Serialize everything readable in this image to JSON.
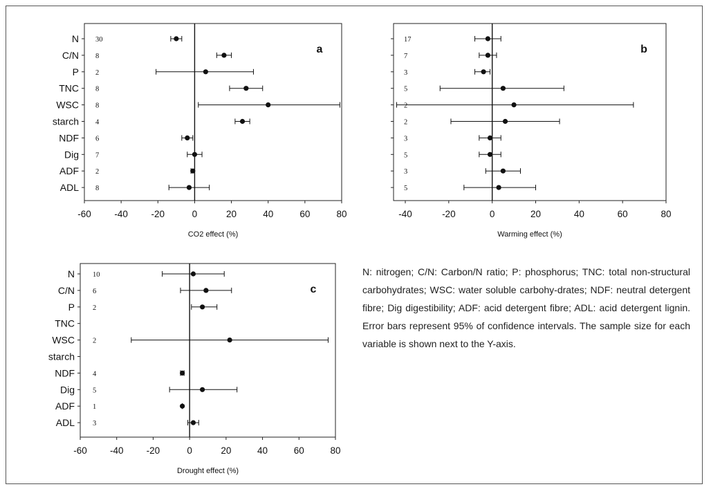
{
  "chart_data": [
    {
      "type": "scatter",
      "panel_label": "a",
      "xlabel": "CO2 effect (%)",
      "xlim": [
        -60,
        80
      ],
      "xticks": [
        "-60",
        "-40",
        "-20",
        "0",
        "20",
        "40",
        "60",
        "80"
      ],
      "categories": [
        "N",
        "C/N",
        "P",
        "TNC",
        "WSC",
        "starch",
        "NDF",
        "Dig",
        "ADF",
        "ADL"
      ],
      "sample_sizes": [
        "30",
        "8",
        "2",
        "8",
        "8",
        "4",
        "6",
        "7",
        "2",
        "8"
      ],
      "values": [
        -10,
        16,
        6,
        28,
        40,
        26,
        -4,
        0,
        -1,
        -3
      ],
      "ci_low": [
        -13,
        12,
        -21,
        19,
        2,
        22,
        -7,
        -4,
        -2,
        -14
      ],
      "ci_high": [
        -7,
        20,
        32,
        37,
        79,
        30,
        -1,
        4,
        0,
        8
      ]
    },
    {
      "type": "scatter",
      "panel_label": "b",
      "xlabel": "Warming effect (%)",
      "xlim": [
        -55,
        80
      ],
      "xticks": [
        "-40",
        "-20",
        "0",
        "20",
        "40",
        "60",
        "80"
      ],
      "categories": [
        "N",
        "C/N",
        "P",
        "TNC",
        "WSC",
        "starch",
        "NDF",
        "Dig",
        "ADF",
        "ADL"
      ],
      "sample_sizes": [
        "17",
        "7",
        "3",
        "5",
        "2",
        "2",
        "3",
        "5",
        "3",
        "5"
      ],
      "values": [
        -2,
        -2,
        -4,
        5,
        10,
        6,
        -1,
        -1,
        5,
        3
      ],
      "ci_low": [
        -8,
        -6,
        -8,
        -24,
        -44,
        -19,
        -6,
        -6,
        -3,
        -13
      ],
      "ci_high": [
        4,
        2,
        -1,
        33,
        65,
        31,
        4,
        4,
        13,
        20
      ]
    },
    {
      "type": "scatter",
      "panel_label": "c",
      "xlabel": "Drought effect (%)",
      "xlim": [
        -60,
        80
      ],
      "xticks": [
        "-60",
        "-40",
        "-20",
        "0",
        "20",
        "40",
        "60",
        "80"
      ],
      "categories": [
        "N",
        "C/N",
        "P",
        "TNC",
        "WSC",
        "starch",
        "NDF",
        "Dig",
        "ADF",
        "ADL"
      ],
      "sample_sizes": [
        "10",
        "6",
        "2",
        "",
        "2",
        "",
        "4",
        "5",
        "1",
        "3"
      ],
      "values": [
        2,
        9,
        7,
        null,
        22,
        null,
        -4,
        7,
        -4,
        2
      ],
      "ci_low": [
        -15,
        -5,
        1,
        null,
        -32,
        null,
        -5,
        -11,
        -4,
        -1
      ],
      "ci_high": [
        19,
        23,
        15,
        null,
        76,
        null,
        -3,
        26,
        -4,
        5
      ]
    }
  ],
  "caption": "N: nitrogen; C/N: Carbon/N ratio; P: phosphorus; TNC: total non-structural carbohydrates; WSC: water soluble carbohy-drates; NDF: neutral detergent fibre; Dig digestibility; ADF: acid detergent fibre; ADL: acid detergent lignin. Error bars represent 95% of confidence intervals. The sample size for each variable is shown next to the Y-axis."
}
